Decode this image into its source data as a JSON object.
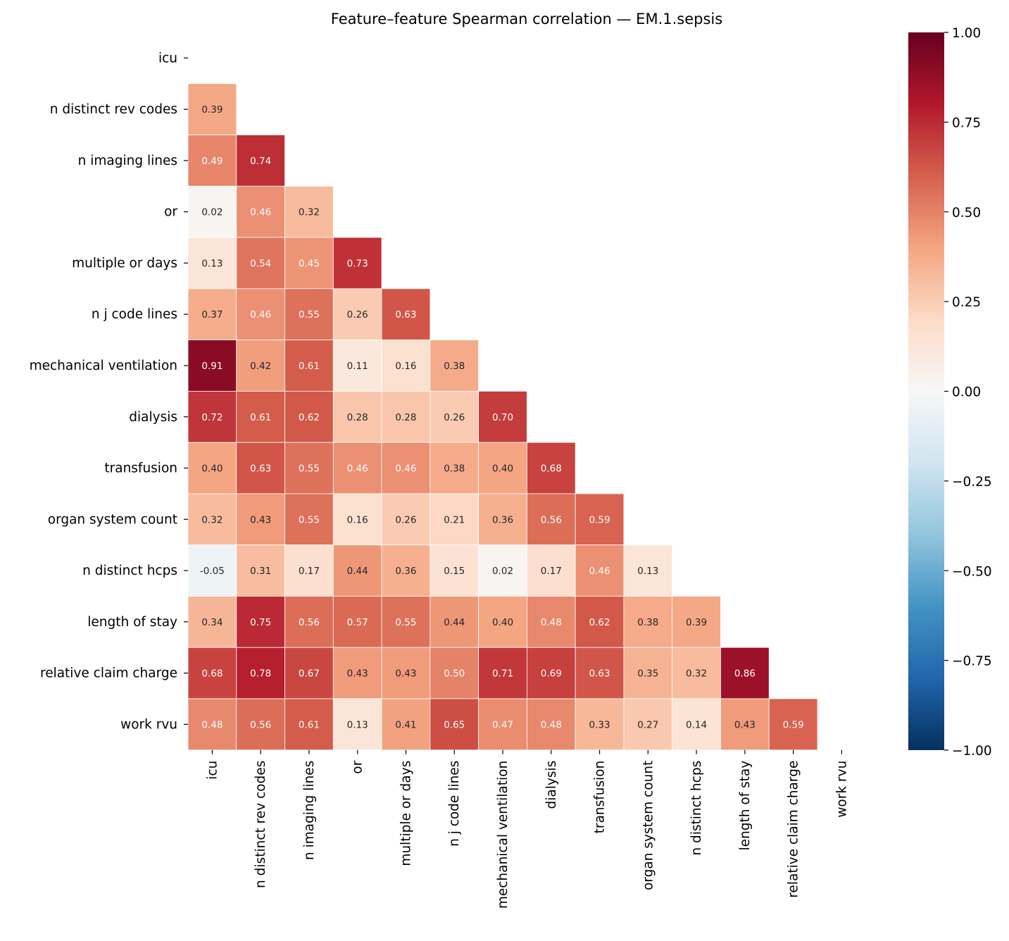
{
  "chart_data": {
    "type": "heatmap",
    "title": "Feature–feature Spearman correlation — EM.1.sepsis",
    "labels": [
      "icu",
      "n distinct rev codes",
      "n imaging lines",
      "or",
      "multiple or days",
      "n j code lines",
      "mechanical ventilation",
      "dialysis",
      "transfusion",
      "organ system count",
      "n distinct hcps",
      "length of stay",
      "relative claim charge",
      "work rvu"
    ],
    "mask": "upper triangle including diagonal",
    "lower_triangle": [
      [],
      [
        0.39
      ],
      [
        0.49,
        0.74
      ],
      [
        0.02,
        0.46,
        0.32
      ],
      [
        0.13,
        0.54,
        0.45,
        0.73
      ],
      [
        0.37,
        0.46,
        0.55,
        0.26,
        0.63
      ],
      [
        0.91,
        0.42,
        0.61,
        0.11,
        0.16,
        0.38
      ],
      [
        0.72,
        0.61,
        0.62,
        0.28,
        0.28,
        0.26,
        0.7
      ],
      [
        0.4,
        0.63,
        0.55,
        0.46,
        0.46,
        0.38,
        0.4,
        0.68
      ],
      [
        0.32,
        0.43,
        0.55,
        0.16,
        0.26,
        0.21,
        0.36,
        0.56,
        0.59
      ],
      [
        -0.05,
        0.31,
        0.17,
        0.44,
        0.36,
        0.15,
        0.02,
        0.17,
        0.46,
        0.13
      ],
      [
        0.34,
        0.75,
        0.56,
        0.57,
        0.55,
        0.44,
        0.4,
        0.48,
        0.62,
        0.38,
        0.39
      ],
      [
        0.68,
        0.78,
        0.67,
        0.43,
        0.43,
        0.5,
        0.71,
        0.69,
        0.63,
        0.35,
        0.32,
        0.86
      ],
      [
        0.48,
        0.56,
        0.61,
        0.13,
        0.41,
        0.65,
        0.47,
        0.48,
        0.33,
        0.27,
        0.14,
        0.43,
        0.59
      ]
    ],
    "colormap": "RdBu_r",
    "vmin": -1.0,
    "vmax": 1.0,
    "colorbar_ticks": [
      "1.00",
      "0.75",
      "0.50",
      "0.25",
      "0.00",
      "−0.25",
      "−0.50",
      "−0.75",
      "−1.00"
    ],
    "colorbar_tick_values": [
      1,
      0.75,
      0.5,
      0.25,
      0,
      -0.25,
      -0.5,
      -0.75,
      -1
    ]
  }
}
